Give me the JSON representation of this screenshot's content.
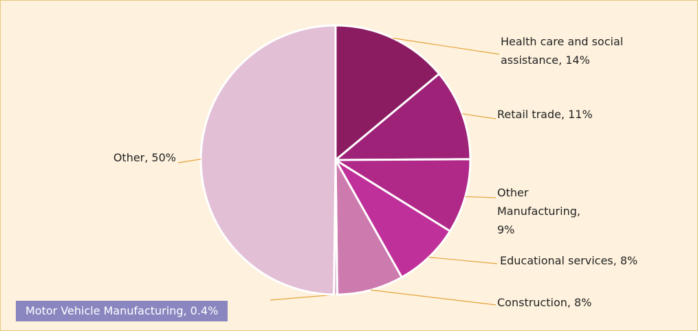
{
  "chart_data": {
    "type": "pie",
    "categories": [
      "Health care and social assistance, 14%",
      "Retail trade, 11%",
      "Other Manufacturing, 9%",
      "Educational services, 8%",
      "Construction, 8%",
      "Motor Vehicle Manufacturing, 0.4%",
      "Other, 50%"
    ],
    "values": [
      14,
      11,
      9,
      8,
      8,
      0.4,
      50
    ],
    "colors": [
      "#8b1c62",
      "#9e2277",
      "#b02888",
      "#c0309a",
      "#cd7aae",
      "#d8a6c6",
      "#e3bfd6"
    ]
  }
}
